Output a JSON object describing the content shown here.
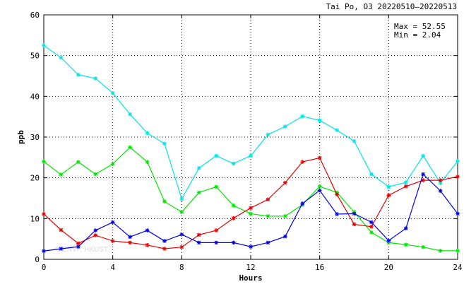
{
  "chart_data": {
    "type": "line",
    "title": "Tai Po, O3 20220510–20220513",
    "xlabel": "Hours",
    "ylabel": "ppb",
    "xlim": [
      0,
      24
    ],
    "ylim": [
      0,
      60
    ],
    "xticks": [
      0,
      4,
      8,
      12,
      16,
      20,
      24
    ],
    "yticks": [
      0,
      10,
      20,
      30,
      40,
      50,
      60
    ],
    "grid": true,
    "stats": {
      "max": "Max = 52.55",
      "min": "Min =  2.04"
    },
    "watermark": "© ENVF, HKUST",
    "x": [
      0,
      1,
      2,
      3,
      4,
      5,
      6,
      7,
      8,
      9,
      10,
      11,
      12,
      13,
      14,
      15,
      16,
      17,
      18,
      19,
      20,
      21,
      22,
      23,
      24
    ],
    "series": [
      {
        "color": "#00e5e5",
        "values": [
          52.5,
          49.5,
          45.3,
          44.4,
          40.8,
          35.6,
          31.0,
          28.4,
          14.8,
          22.4,
          25.4,
          23.5,
          25.4,
          30.6,
          32.6,
          35.1,
          34.1,
          31.7,
          29.0,
          20.9,
          17.8,
          18.9,
          25.4,
          18.7,
          24.1
        ]
      },
      {
        "color": "#00e600",
        "values": [
          24.0,
          20.8,
          23.9,
          20.9,
          23.4,
          27.5,
          23.9,
          14.2,
          11.6,
          16.4,
          17.8,
          13.2,
          11.2,
          10.6,
          10.6,
          13.4,
          17.9,
          16.4,
          11.6,
          6.6,
          4.1,
          3.6,
          3.0,
          2.1,
          2.1
        ]
      },
      {
        "color": "#e60000",
        "values": [
          11.1,
          7.2,
          3.9,
          5.9,
          4.5,
          4.1,
          3.5,
          2.6,
          3.0,
          6.0,
          7.1,
          10.1,
          12.6,
          14.7,
          18.8,
          23.9,
          24.9,
          15.9,
          8.6,
          8.0,
          15.7,
          17.9,
          19.4,
          19.4,
          20.3
        ]
      },
      {
        "color": "#0000e6",
        "values": [
          2.04,
          2.6,
          3.1,
          7.1,
          9.1,
          5.5,
          7.1,
          4.5,
          6.1,
          4.1,
          4.1,
          4.1,
          3.1,
          4.1,
          5.6,
          13.7,
          16.9,
          11.1,
          11.2,
          9.1,
          4.6,
          7.6,
          20.9,
          16.8,
          11.2
        ]
      }
    ]
  }
}
